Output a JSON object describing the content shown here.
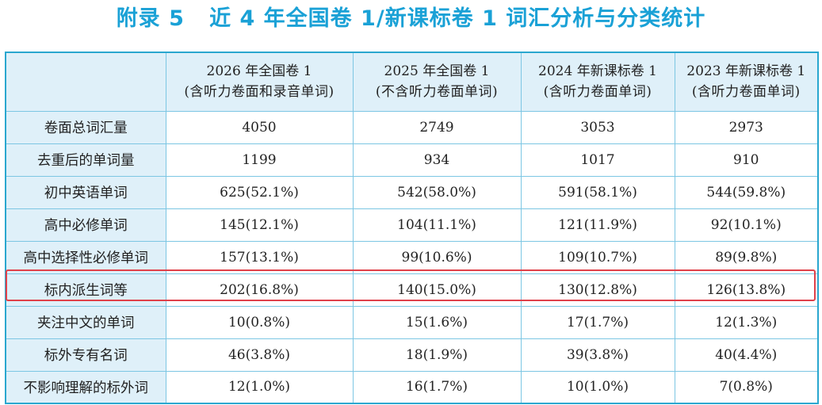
{
  "title": "附录 5   近 4 年全国卷 1/新课标卷 1 词汇分析与分类统计",
  "columns": [
    {
      "year": "2026 年全国卷 1",
      "note": "(含听力卷面和录音单词)"
    },
    {
      "year": "2025 年全国卷 1",
      "note": "(不含听力卷面单词)"
    },
    {
      "year": "2024 年新课标卷 1",
      "note": "(含听力卷面单词)"
    },
    {
      "year": "2023 年新课标卷 1",
      "note": "(含听力卷面单词)"
    }
  ],
  "rows": [
    {
      "label": "卷面总词汇量",
      "values": [
        "4050",
        "2749",
        "3053",
        "2973"
      ]
    },
    {
      "label": "去重后的单词量",
      "values": [
        "1199",
        "934",
        "1017",
        "910"
      ]
    },
    {
      "label": "初中英语单词",
      "values": [
        "625(52.1%)",
        "542(58.0%)",
        "591(58.1%)",
        "544(59.8%)"
      ]
    },
    {
      "label": "高中必修单词",
      "values": [
        "145(12.1%)",
        "104(11.1%)",
        "121(11.9%)",
        "92(10.1%)"
      ]
    },
    {
      "label": "高中选择性必修单词",
      "values": [
        "157(13.1%)",
        "99(10.6%)",
        "109(10.7%)",
        "89(9.8%)"
      ]
    },
    {
      "label": "标内派生词等",
      "values": [
        "202(16.8%)",
        "140(15.0%)",
        "130(12.8%)",
        "126(13.8%)"
      ]
    },
    {
      "label": "夹注中文的单词",
      "values": [
        "10(0.8%)",
        "15(1.6%)",
        "17(1.7%)",
        "12(1.3%)"
      ]
    },
    {
      "label": "标外专有名词",
      "values": [
        "46(3.8%)",
        "18(1.9%)",
        "39(3.8%)",
        "40(4.4%)"
      ]
    },
    {
      "label": "不影响理解的标外词",
      "values": [
        "12(1.0%)",
        "16(1.7%)",
        "10(1.0%)",
        "7(0.8%)"
      ]
    }
  ],
  "highlighted_row": "标内派生词等",
  "colors": {
    "title": "#1aa1d6",
    "table_border": "#2aa7cf",
    "grid": "#7cc6e3",
    "label_fill": "#dff0f9",
    "highlight": "#e0414a"
  }
}
